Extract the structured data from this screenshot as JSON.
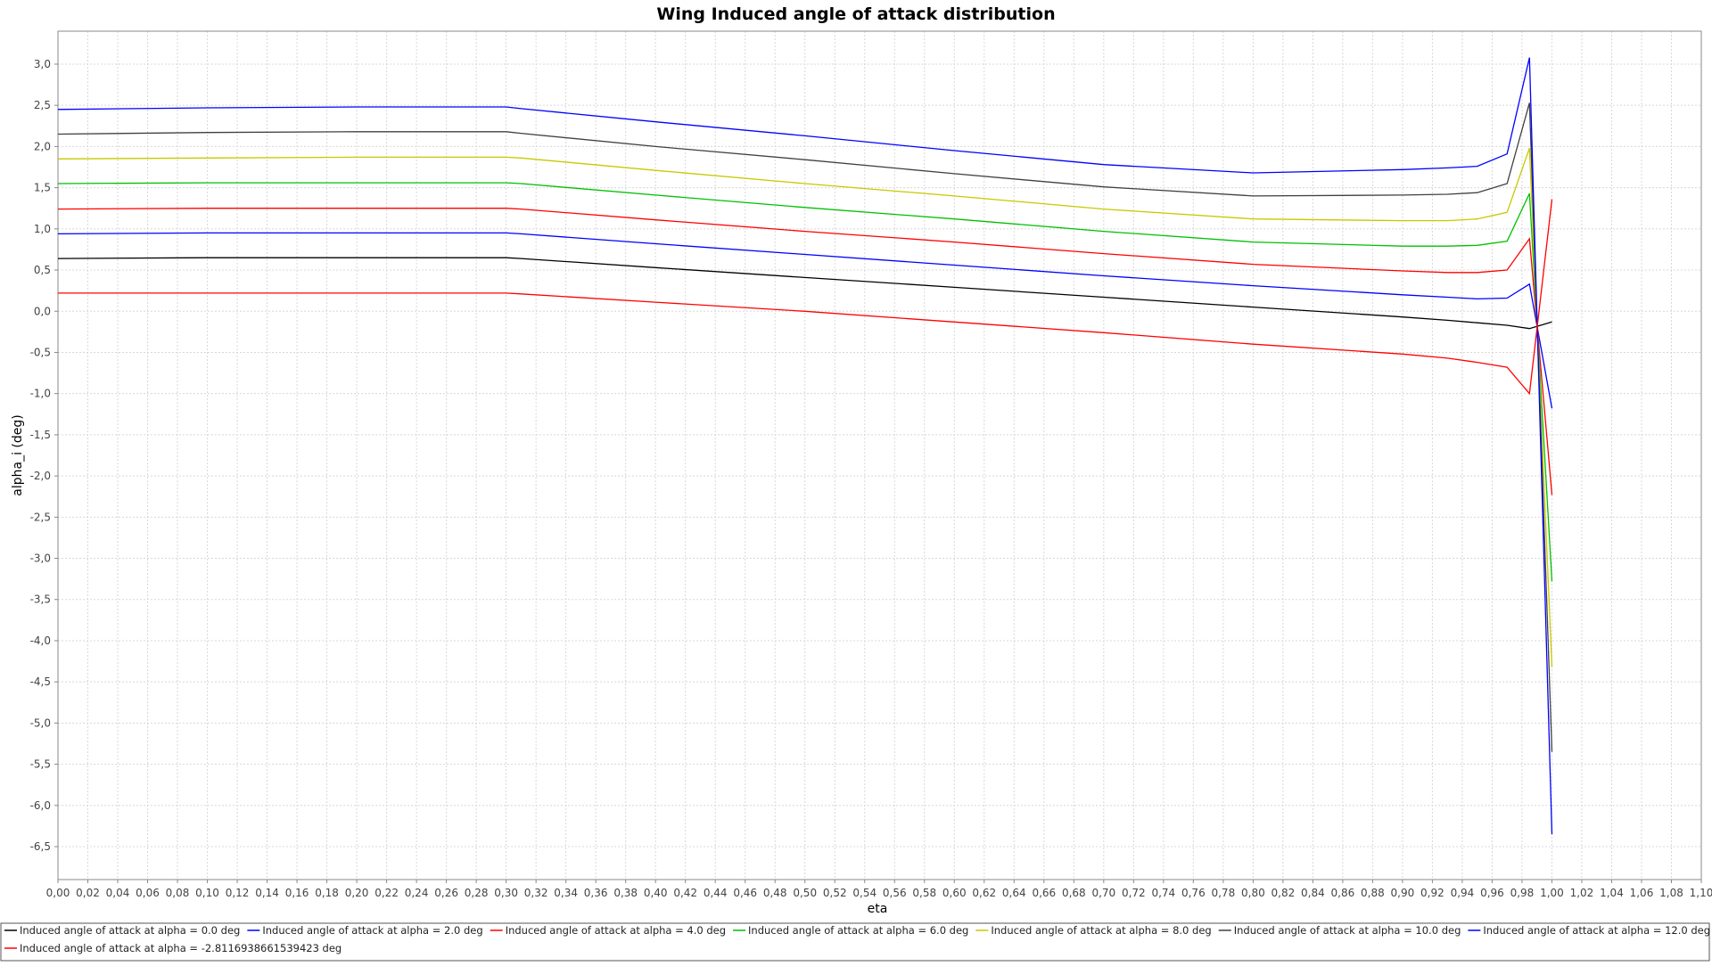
{
  "chart_data": {
    "type": "line",
    "title": "Wing Induced angle of attack distribution",
    "xlabel": "eta",
    "ylabel": "alpha_i (deg)",
    "xlim": [
      0.0,
      1.1
    ],
    "ylim": [
      -6.9,
      3.4
    ],
    "x_ticks": [
      0.0,
      0.02,
      0.04,
      0.06,
      0.08,
      0.1,
      0.12,
      0.14,
      0.16,
      0.18,
      0.2,
      0.22,
      0.24,
      0.26,
      0.28,
      0.3,
      0.32,
      0.34,
      0.36,
      0.38,
      0.4,
      0.42,
      0.44,
      0.46,
      0.48,
      0.5,
      0.52,
      0.54,
      0.56,
      0.58,
      0.6,
      0.62,
      0.64,
      0.66,
      0.68,
      0.7,
      0.72,
      0.74,
      0.76,
      0.78,
      0.8,
      0.82,
      0.84,
      0.86,
      0.88,
      0.9,
      0.92,
      0.94,
      0.96,
      0.98,
      1.0,
      1.02,
      1.04,
      1.06,
      1.08,
      1.1
    ],
    "x_tick_labels": [
      "0,00",
      "0,02",
      "0,04",
      "0,06",
      "0,08",
      "0,10",
      "0,12",
      "0,14",
      "0,16",
      "0,18",
      "0,20",
      "0,22",
      "0,24",
      "0,26",
      "0,28",
      "0,30",
      "0,32",
      "0,34",
      "0,36",
      "0,38",
      "0,40",
      "0,42",
      "0,44",
      "0,46",
      "0,48",
      "0,50",
      "0,52",
      "0,54",
      "0,56",
      "0,58",
      "0,60",
      "0,62",
      "0,64",
      "0,66",
      "0,68",
      "0,70",
      "0,72",
      "0,74",
      "0,76",
      "0,78",
      "0,80",
      "0,82",
      "0,84",
      "0,86",
      "0,88",
      "0,90",
      "0,92",
      "0,94",
      "0,96",
      "0,98",
      "1,00",
      "1,02",
      "1,04",
      "1,06",
      "1,08",
      "1,10"
    ],
    "y_ticks": [
      3.0,
      2.5,
      2.0,
      1.5,
      1.0,
      0.5,
      0.0,
      -0.5,
      -1.0,
      -1.5,
      -2.0,
      -2.5,
      -3.0,
      -3.5,
      -4.0,
      -4.5,
      -5.0,
      -5.5,
      -6.0,
      -6.5
    ],
    "y_tick_labels": [
      "3,0",
      "2,5",
      "2,0",
      "1,5",
      "1,0",
      "0,5",
      "0,0",
      "-0,5",
      "-1,0",
      "-1,5",
      "-2,0",
      "-2,5",
      "-3,0",
      "-3,5",
      "-4,0",
      "-4,5",
      "-5,0",
      "-5,5",
      "-6,0",
      "-6,5"
    ],
    "grid": true,
    "legend_position": "bottom",
    "x": [
      0.0,
      0.1,
      0.2,
      0.3,
      0.31,
      0.4,
      0.5,
      0.6,
      0.7,
      0.8,
      0.9,
      0.93,
      0.95,
      0.97,
      0.985,
      1.0
    ],
    "series": [
      {
        "name": "Induced angle of attack at alpha = 0.0 deg",
        "color": "#000000",
        "values": [
          0.64,
          0.65,
          0.65,
          0.65,
          0.64,
          0.53,
          0.41,
          0.29,
          0.17,
          0.05,
          -0.07,
          -0.11,
          -0.14,
          -0.17,
          -0.21,
          -0.13
        ]
      },
      {
        "name": "Induced angle of attack at alpha = 2.0 deg",
        "color": "#0000ff",
        "values": [
          0.94,
          0.95,
          0.95,
          0.95,
          0.94,
          0.82,
          0.69,
          0.56,
          0.43,
          0.31,
          0.2,
          0.17,
          0.15,
          0.16,
          0.33,
          -1.18
        ]
      },
      {
        "name": "Induced angle of attack at alpha = 4.0 deg",
        "color": "#ff0000",
        "values": [
          1.24,
          1.25,
          1.25,
          1.25,
          1.24,
          1.11,
          0.97,
          0.84,
          0.7,
          0.57,
          0.49,
          0.47,
          0.47,
          0.5,
          0.88,
          -2.23
        ]
      },
      {
        "name": "Induced angle of attack at alpha = 6.0 deg",
        "color": "#00c000",
        "values": [
          1.55,
          1.56,
          1.56,
          1.56,
          1.55,
          1.41,
          1.26,
          1.12,
          0.97,
          0.84,
          0.79,
          0.79,
          0.8,
          0.85,
          1.43,
          -3.28
        ]
      },
      {
        "name": "Induced angle of attack at alpha = 8.0 deg",
        "color": "#c8c800",
        "values": [
          1.85,
          1.86,
          1.87,
          1.87,
          1.86,
          1.71,
          1.55,
          1.4,
          1.24,
          1.12,
          1.1,
          1.1,
          1.12,
          1.2,
          1.98,
          -4.32
        ]
      },
      {
        "name": "Induced angle of attack at alpha = 10.0 deg",
        "color": "#404040",
        "values": [
          2.15,
          2.17,
          2.18,
          2.18,
          2.16,
          2.0,
          1.84,
          1.67,
          1.51,
          1.4,
          1.41,
          1.42,
          1.44,
          1.55,
          2.53,
          -5.35
        ]
      },
      {
        "name": "Induced angle of attack at alpha = 12.0 deg",
        "color": "#0000ff",
        "values": [
          2.45,
          2.47,
          2.48,
          2.48,
          2.46,
          2.3,
          2.13,
          1.95,
          1.78,
          1.68,
          1.72,
          1.74,
          1.76,
          1.91,
          3.08,
          -6.35
        ]
      },
      {
        "name": "Induced angle of attack at alpha = -2.8116938661539423 deg",
        "color": "#ff0000",
        "values": [
          0.22,
          0.22,
          0.22,
          0.22,
          0.21,
          0.11,
          0.0,
          -0.13,
          -0.26,
          -0.4,
          -0.52,
          -0.57,
          -0.62,
          -0.68,
          -1.0,
          1.36
        ]
      }
    ]
  }
}
